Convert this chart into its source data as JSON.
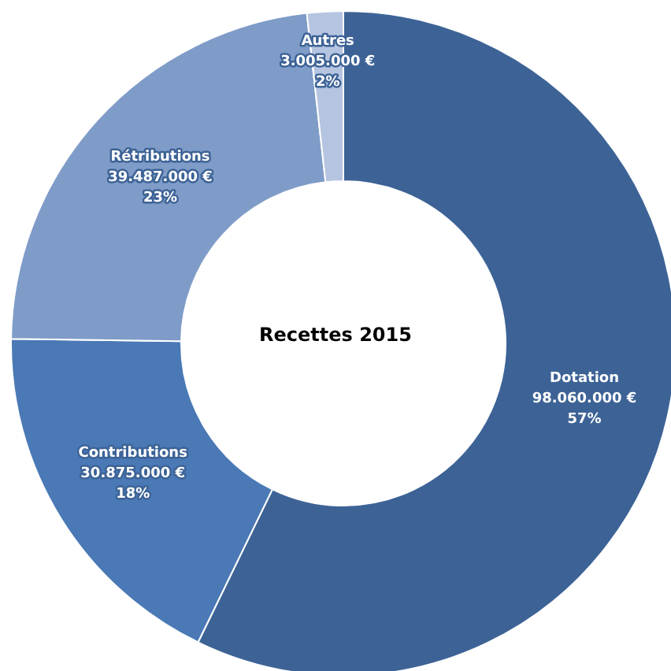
{
  "chart_data": {
    "type": "donut",
    "title": "Recettes 2015",
    "categories": [
      "Dotation",
      "Contributions",
      "Rétributions",
      "Autres"
    ],
    "values": [
      98060000,
      30875000,
      39487000,
      3005000
    ],
    "value_labels": [
      "98.060.000 €\n57%",
      "30.875.000 €\n18%",
      "39.487.000 €\n23%",
      "3.005.000 €\n2%"
    ],
    "colors": [
      "#3d6396",
      "#4a79b6",
      "#7f9cc8",
      "#b5c5e1"
    ]
  }
}
